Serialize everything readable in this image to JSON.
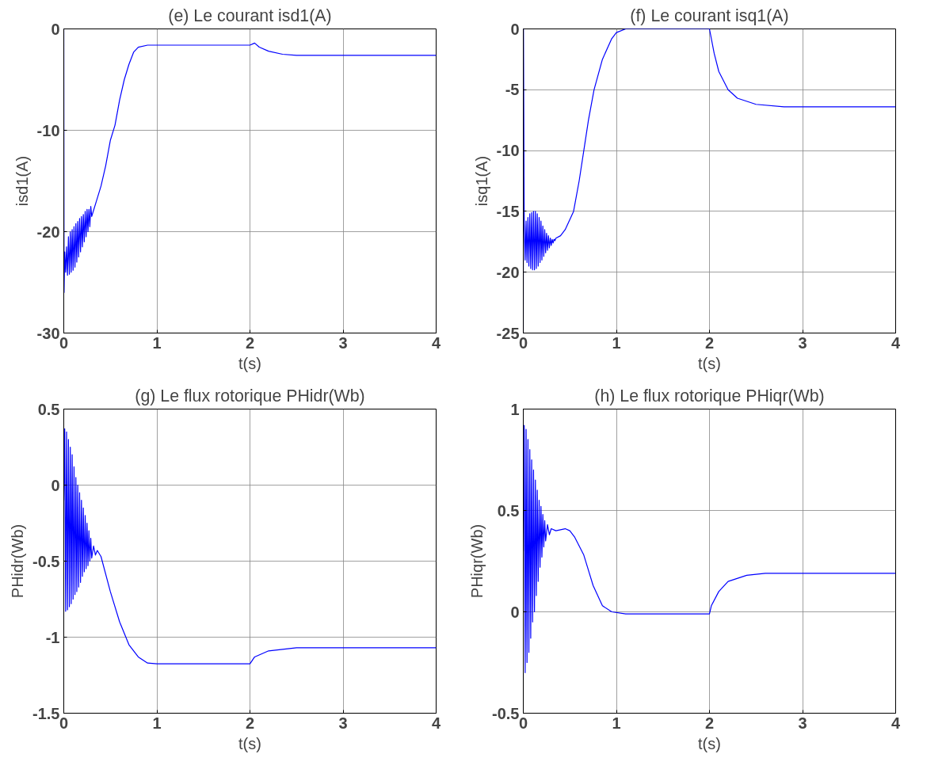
{
  "chart_data": [
    {
      "type": "line",
      "title": "(e) Le courant isd1(A)",
      "xlabel": "t(s)",
      "ylabel": "isd1(A)",
      "xlim": [
        0,
        4
      ],
      "ylim": [
        -30,
        0
      ],
      "xticks": [
        0,
        1,
        2,
        3,
        4
      ],
      "yticks": [
        -30,
        -20,
        -10,
        0
      ],
      "grid": true,
      "series": [
        {
          "color": "#0000ff",
          "x": [
            0,
            0.003,
            0.01,
            0.02,
            0.03,
            0.04,
            0.05,
            0.06,
            0.07,
            0.08,
            0.09,
            0.1,
            0.11,
            0.12,
            0.13,
            0.14,
            0.15,
            0.16,
            0.17,
            0.18,
            0.19,
            0.2,
            0.21,
            0.22,
            0.23,
            0.24,
            0.25,
            0.26,
            0.27,
            0.28,
            0.29,
            0.3,
            0.35,
            0.4,
            0.45,
            0.5,
            0.55,
            0.6,
            0.65,
            0.7,
            0.75,
            0.8,
            0.9,
            2.0,
            2.05,
            2.1,
            2.2,
            2.35,
            2.5,
            4
          ],
          "values": [
            0,
            -26,
            -22,
            -24,
            -21.5,
            -24.3,
            -20.5,
            -24.2,
            -20,
            -24,
            -19.8,
            -23.8,
            -19.5,
            -23.5,
            -19.2,
            -23,
            -19,
            -22.5,
            -18.7,
            -22,
            -18.5,
            -21.5,
            -18.3,
            -21,
            -18,
            -20.5,
            -17.8,
            -20,
            -17.8,
            -19.5,
            -17.5,
            -18.5,
            -17,
            -15.5,
            -13.5,
            -11,
            -9.5,
            -7,
            -5,
            -3.5,
            -2.3,
            -1.8,
            -1.6,
            -1.6,
            -1.4,
            -1.8,
            -2.2,
            -2.5,
            -2.6,
            -2.6
          ]
        }
      ]
    },
    {
      "type": "line",
      "title": "(f) Le courant isq1(A)",
      "xlabel": "t(s)",
      "ylabel": "isq1(A)",
      "xlim": [
        0,
        4
      ],
      "ylim": [
        -25,
        0
      ],
      "xticks": [
        0,
        1,
        2,
        3,
        4
      ],
      "yticks": [
        -25,
        -20,
        -15,
        -10,
        -5,
        0
      ],
      "grid": true,
      "series": [
        {
          "color": "#0000ff",
          "x": [
            0,
            0.002,
            0.01,
            0.02,
            0.03,
            0.04,
            0.05,
            0.06,
            0.07,
            0.08,
            0.09,
            0.1,
            0.11,
            0.12,
            0.13,
            0.14,
            0.15,
            0.16,
            0.17,
            0.18,
            0.19,
            0.2,
            0.21,
            0.22,
            0.23,
            0.24,
            0.25,
            0.26,
            0.27,
            0.28,
            0.29,
            0.3,
            0.31,
            0.32,
            0.33,
            0.34,
            0.35,
            0.4,
            0.45,
            0.54,
            0.6,
            0.65,
            0.7,
            0.76,
            0.85,
            0.95,
            1.0,
            1.1,
            2.0,
            2.05,
            2.1,
            2.2,
            2.3,
            2.5,
            2.8,
            4
          ],
          "values": [
            -25,
            0,
            -16,
            -19,
            -15.8,
            -19.2,
            -15.5,
            -19.5,
            -15.2,
            -19.7,
            -15.1,
            -19.8,
            -15,
            -19.8,
            -15,
            -19.7,
            -15.2,
            -19.5,
            -15.5,
            -19.2,
            -15.8,
            -19,
            -16.2,
            -18.7,
            -16.5,
            -18.4,
            -16.8,
            -18.2,
            -17,
            -18,
            -17.2,
            -17.8,
            -17.3,
            -17.6,
            -17.3,
            -17.4,
            -17.2,
            -17,
            -16.5,
            -15,
            -12.5,
            -10,
            -7.5,
            -5,
            -2.5,
            -0.8,
            -0.3,
            0,
            0,
            -2,
            -3.5,
            -5,
            -5.7,
            -6.2,
            -6.4,
            -6.4
          ]
        }
      ]
    },
    {
      "type": "line",
      "title": "(g) Le flux rotorique PHidr(Wb)",
      "xlabel": "t(s)",
      "ylabel": "PHidr(Wb)",
      "xlim": [
        0,
        4
      ],
      "ylim": [
        -1.5,
        0.5
      ],
      "xticks": [
        0,
        1,
        2,
        3,
        4
      ],
      "yticks": [
        -1.5,
        -1,
        -0.5,
        0,
        0.5
      ],
      "grid": true,
      "series": [
        {
          "color": "#0000ff",
          "x": [
            0,
            0.01,
            0.02,
            0.03,
            0.04,
            0.05,
            0.06,
            0.07,
            0.08,
            0.09,
            0.1,
            0.11,
            0.12,
            0.13,
            0.14,
            0.15,
            0.16,
            0.17,
            0.18,
            0.19,
            0.2,
            0.21,
            0.22,
            0.23,
            0.24,
            0.25,
            0.26,
            0.27,
            0.28,
            0.29,
            0.3,
            0.32,
            0.34,
            0.36,
            0.4,
            0.5,
            0.6,
            0.7,
            0.8,
            0.9,
            1.0,
            2.0,
            2.05,
            2.2,
            2.5,
            4
          ],
          "values": [
            -0.1,
            0.37,
            -0.83,
            0.35,
            -0.82,
            0.3,
            -0.8,
            0.25,
            -0.78,
            0.2,
            -0.75,
            0.12,
            -0.72,
            0.05,
            -0.7,
            0.0,
            -0.67,
            -0.05,
            -0.64,
            -0.1,
            -0.6,
            -0.15,
            -0.57,
            -0.2,
            -0.55,
            -0.25,
            -0.53,
            -0.3,
            -0.5,
            -0.35,
            -0.48,
            -0.4,
            -0.46,
            -0.43,
            -0.47,
            -0.7,
            -0.9,
            -1.05,
            -1.13,
            -1.17,
            -1.175,
            -1.175,
            -1.13,
            -1.09,
            -1.07,
            -1.07
          ]
        }
      ]
    },
    {
      "type": "line",
      "title": "(h) Le flux rotorique PHiqr(Wb)",
      "xlabel": "t(s)",
      "ylabel": "PHiqr(Wb)",
      "xlim": [
        0,
        4
      ],
      "ylim": [
        -0.5,
        1
      ],
      "xticks": [
        0,
        1,
        2,
        3,
        4
      ],
      "yticks": [
        -0.5,
        0,
        0.5,
        1
      ],
      "grid": true,
      "series": [
        {
          "color": "#0000ff",
          "x": [
            0,
            0.01,
            0.02,
            0.03,
            0.04,
            0.05,
            0.06,
            0.07,
            0.08,
            0.09,
            0.1,
            0.11,
            0.12,
            0.13,
            0.14,
            0.15,
            0.16,
            0.17,
            0.18,
            0.19,
            0.2,
            0.21,
            0.22,
            0.23,
            0.24,
            0.26,
            0.28,
            0.3,
            0.35,
            0.45,
            0.5,
            0.55,
            0.65,
            0.75,
            0.85,
            0.95,
            1.1,
            2.0,
            2.02,
            2.1,
            2.2,
            2.4,
            2.6,
            4
          ],
          "values": [
            0.3,
            0.92,
            -0.3,
            0.9,
            -0.25,
            0.85,
            -0.2,
            0.8,
            -0.13,
            0.75,
            -0.05,
            0.7,
            0.0,
            0.65,
            0.08,
            0.6,
            0.15,
            0.55,
            0.22,
            0.52,
            0.27,
            0.48,
            0.32,
            0.45,
            0.35,
            0.43,
            0.38,
            0.41,
            0.4,
            0.41,
            0.4,
            0.37,
            0.28,
            0.13,
            0.03,
            0.0,
            -0.01,
            -0.01,
            0.03,
            0.1,
            0.15,
            0.18,
            0.19,
            0.19
          ]
        }
      ]
    }
  ]
}
